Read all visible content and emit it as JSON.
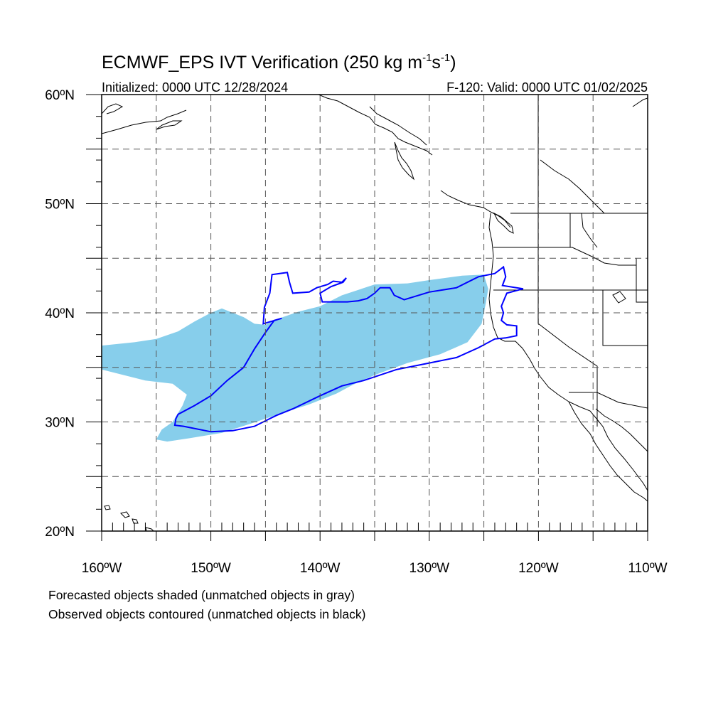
{
  "title": {
    "main": "ECMWF_EPS IVT Verification (250 kg m",
    "sup1": "-1",
    "mid": "s",
    "sup2": "-1",
    "end": ")"
  },
  "subtitle_left": "Initialized: 0000 UTC 12/28/2024",
  "subtitle_right": "F-120: Valid: 0000 UTC 01/02/2025",
  "map": {
    "lon_range": [
      -160,
      -110
    ],
    "lat_range": [
      20,
      60
    ],
    "grid_lon": [
      -155,
      -150,
      -145,
      -140,
      -135,
      -130,
      -125,
      -120,
      -115
    ],
    "grid_lat": [
      25,
      30,
      35,
      40,
      45,
      50,
      55
    ],
    "lat_labels": [
      "20ºN",
      "30ºN",
      "40ºN",
      "50ºN",
      "60ºN"
    ],
    "lat_label_values": [
      20,
      30,
      40,
      50,
      60
    ],
    "lon_labels": [
      "160ºW",
      "150ºW",
      "140ºW",
      "130ºW",
      "120ºW",
      "110ºW"
    ],
    "lon_label_values": [
      -160,
      -150,
      -140,
      -130,
      -120,
      -110
    ],
    "forecast_color": "#87ceeb",
    "observed_color": "#0000ff",
    "forecast_object_polygon": [
      [
        -160,
        37.0
      ],
      [
        -157,
        37.3
      ],
      [
        -155,
        37.6
      ],
      [
        -153,
        38.3
      ],
      [
        -151.5,
        39.2
      ],
      [
        -150,
        40.0
      ],
      [
        -149,
        40.4
      ],
      [
        -148.5,
        40.2
      ],
      [
        -147,
        39.6
      ],
      [
        -146,
        39.0
      ],
      [
        -145,
        38.9
      ],
      [
        -144,
        39.4
      ],
      [
        -142,
        40.1
      ],
      [
        -140,
        40.6
      ],
      [
        -138,
        41.6
      ],
      [
        -135,
        42.6
      ],
      [
        -132,
        42.7
      ],
      [
        -130,
        43.0
      ],
      [
        -127,
        43.4
      ],
      [
        -125,
        43.5
      ],
      [
        -124.6,
        42.2
      ],
      [
        -124.8,
        41.0
      ],
      [
        -125.2,
        39.0
      ],
      [
        -126.5,
        37.3
      ],
      [
        -129,
        36.2
      ],
      [
        -132,
        35.4
      ],
      [
        -135,
        34.3
      ],
      [
        -137,
        33.4
      ],
      [
        -138.5,
        32.6
      ],
      [
        -141,
        31.6
      ],
      [
        -143.5,
        30.8
      ],
      [
        -146.5,
        29.8
      ],
      [
        -149,
        29.0
      ],
      [
        -152,
        28.5
      ],
      [
        -154,
        28.2
      ],
      [
        -155,
        28.4
      ],
      [
        -154.5,
        29.3
      ],
      [
        -153.5,
        30.0
      ],
      [
        -152.6,
        31.5
      ],
      [
        -152.2,
        32.5
      ],
      [
        -153.5,
        33.5
      ],
      [
        -156,
        33.8
      ],
      [
        -158,
        34.3
      ],
      [
        -160,
        34.8
      ]
    ],
    "observed_object_polygon": [
      [
        -153,
        30.7
      ],
      [
        -151.5,
        31.5
      ],
      [
        -150,
        32.4
      ],
      [
        -148.5,
        33.8
      ],
      [
        -147,
        35.0
      ],
      [
        -146,
        36.7
      ],
      [
        -145,
        38.2
      ],
      [
        -144.2,
        39.3
      ],
      [
        -143.5,
        39.5
      ],
      [
        -145.2,
        39.0
      ],
      [
        -145.1,
        40.5
      ],
      [
        -144.6,
        41.8
      ],
      [
        -144.4,
        43.5
      ],
      [
        -143,
        43.7
      ],
      [
        -142.8,
        42.8
      ],
      [
        -142.5,
        41.8
      ],
      [
        -141,
        41.9
      ],
      [
        -140.3,
        42.3
      ],
      [
        -139.3,
        42.6
      ],
      [
        -138.8,
        42.9
      ],
      [
        -138,
        42.8
      ],
      [
        -137.6,
        43.2
      ],
      [
        -137.9,
        42.8
      ],
      [
        -139.0,
        42.4
      ],
      [
        -140.0,
        41.8
      ],
      [
        -139.8,
        41.0
      ],
      [
        -137.5,
        41.0
      ],
      [
        -136.5,
        41.1
      ],
      [
        -135.7,
        41.3
      ],
      [
        -135,
        41.8
      ],
      [
        -134.5,
        42.3
      ],
      [
        -133.6,
        42.3
      ],
      [
        -133.2,
        41.6
      ],
      [
        -132.3,
        41.2
      ],
      [
        -130,
        41.9
      ],
      [
        -127.5,
        42.3
      ],
      [
        -125.5,
        43.3
      ],
      [
        -124,
        43.6
      ],
      [
        -123.2,
        44.2
      ],
      [
        -123,
        43.3
      ],
      [
        -123.3,
        42.5
      ],
      [
        -121.4,
        42.2
      ],
      [
        -122.9,
        41.8
      ],
      [
        -123.4,
        40.6
      ],
      [
        -123.2,
        40.0
      ],
      [
        -123.4,
        39.3
      ],
      [
        -122.9,
        38.9
      ],
      [
        -122.0,
        38.8
      ],
      [
        -122.0,
        37.9
      ],
      [
        -123.0,
        37.7
      ],
      [
        -124.0,
        37.6
      ],
      [
        -125.5,
        36.8
      ],
      [
        -127.5,
        35.9
      ],
      [
        -130,
        35.4
      ],
      [
        -133,
        34.8
      ],
      [
        -136,
        33.8
      ],
      [
        -138,
        33.3
      ],
      [
        -140,
        32.4
      ],
      [
        -142.5,
        31.2
      ],
      [
        -144,
        30.6
      ],
      [
        -146,
        29.6
      ],
      [
        -148,
        29.2
      ],
      [
        -150,
        29.1
      ],
      [
        -152.5,
        29.6
      ],
      [
        -153.3,
        29.7
      ],
      [
        -153.2,
        30.3
      ]
    ]
  },
  "notes": [
    "Forecasted objects shaded (unmatched objects in gray)",
    "Observed objects contoured (unmatched objects in black)"
  ]
}
